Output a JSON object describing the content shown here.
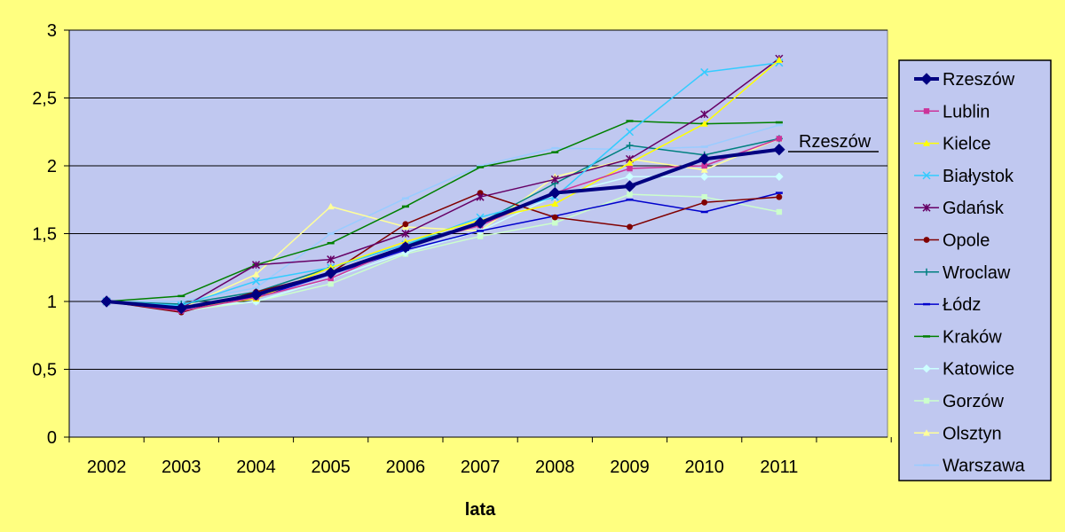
{
  "chart_data": {
    "type": "line",
    "title": "",
    "xlabel": "lata",
    "ylabel": "",
    "categories": [
      "2002",
      "2003",
      "2004",
      "2005",
      "2006",
      "2007",
      "2008",
      "2009",
      "2010",
      "2011"
    ],
    "ylim": [
      0,
      3
    ],
    "yticks": [
      "0",
      "0,5",
      "1",
      "1,5",
      "2",
      "2,5",
      "3"
    ],
    "grid": true,
    "legend_position": "right",
    "annotation": "Rzeszów",
    "series": [
      {
        "name": "Rzeszów",
        "color": "#000080",
        "marker": "diamond",
        "values": [
          1.0,
          0.95,
          1.05,
          1.21,
          1.4,
          1.58,
          1.8,
          1.85,
          2.05,
          2.12
        ]
      },
      {
        "name": "Lublin",
        "color": "#cc3399",
        "marker": "square",
        "values": [
          1.0,
          0.93,
          1.03,
          1.17,
          1.41,
          1.56,
          1.8,
          1.98,
          2.0,
          2.2
        ]
      },
      {
        "name": "Kielce",
        "color": "#ffff00",
        "marker": "triangle",
        "values": [
          1.0,
          0.95,
          1.02,
          1.25,
          1.44,
          1.6,
          1.72,
          2.02,
          2.31,
          2.78
        ]
      },
      {
        "name": "Białystok",
        "color": "#33ccff",
        "marker": "x",
        "values": [
          1.0,
          0.97,
          1.15,
          1.25,
          1.42,
          1.62,
          1.77,
          2.25,
          2.69,
          2.76
        ]
      },
      {
        "name": "Gdańsk",
        "color": "#660066",
        "marker": "star",
        "values": [
          1.0,
          0.95,
          1.27,
          1.31,
          1.5,
          1.77,
          1.9,
          2.05,
          2.38,
          2.79
        ]
      },
      {
        "name": "Opole",
        "color": "#800000",
        "marker": "circle",
        "values": [
          1.0,
          0.92,
          1.07,
          1.21,
          1.57,
          1.8,
          1.62,
          1.55,
          1.73,
          1.77
        ]
      },
      {
        "name": "Wroclaw",
        "color": "#008080",
        "marker": "plus",
        "values": [
          1.0,
          0.98,
          1.07,
          1.25,
          1.42,
          1.58,
          1.87,
          2.15,
          2.08,
          2.2
        ]
      },
      {
        "name": "Łódz",
        "color": "#0000cc",
        "marker": "dash",
        "values": [
          1.0,
          0.96,
          1.03,
          1.2,
          1.38,
          1.52,
          1.63,
          1.75,
          1.66,
          1.8
        ]
      },
      {
        "name": "Kraków",
        "color": "#008000",
        "marker": "dash",
        "values": [
          1.0,
          1.04,
          1.27,
          1.43,
          1.7,
          1.99,
          2.1,
          2.33,
          2.31,
          2.32
        ]
      },
      {
        "name": "Katowice",
        "color": "#ccffff",
        "marker": "diamond",
        "values": [
          1.0,
          0.95,
          1.0,
          1.17,
          1.36,
          1.52,
          1.78,
          1.92,
          1.92,
          1.92
        ]
      },
      {
        "name": "Gorzów",
        "color": "#ccffcc",
        "marker": "square",
        "values": [
          1.0,
          0.93,
          1.0,
          1.13,
          1.35,
          1.48,
          1.58,
          1.79,
          1.77,
          1.66
        ]
      },
      {
        "name": "Olsztyn",
        "color": "#ffff99",
        "marker": "triangle",
        "values": [
          1.0,
          0.95,
          1.2,
          1.7,
          1.55,
          1.52,
          1.92,
          2.05,
          1.97,
          2.2
        ]
      },
      {
        "name": "Warszawa",
        "color": "#99ccff",
        "marker": "dash",
        "values": [
          1.0,
          1.0,
          1.1,
          1.5,
          1.76,
          2.0,
          2.13,
          2.12,
          2.14,
          2.3
        ]
      }
    ]
  }
}
